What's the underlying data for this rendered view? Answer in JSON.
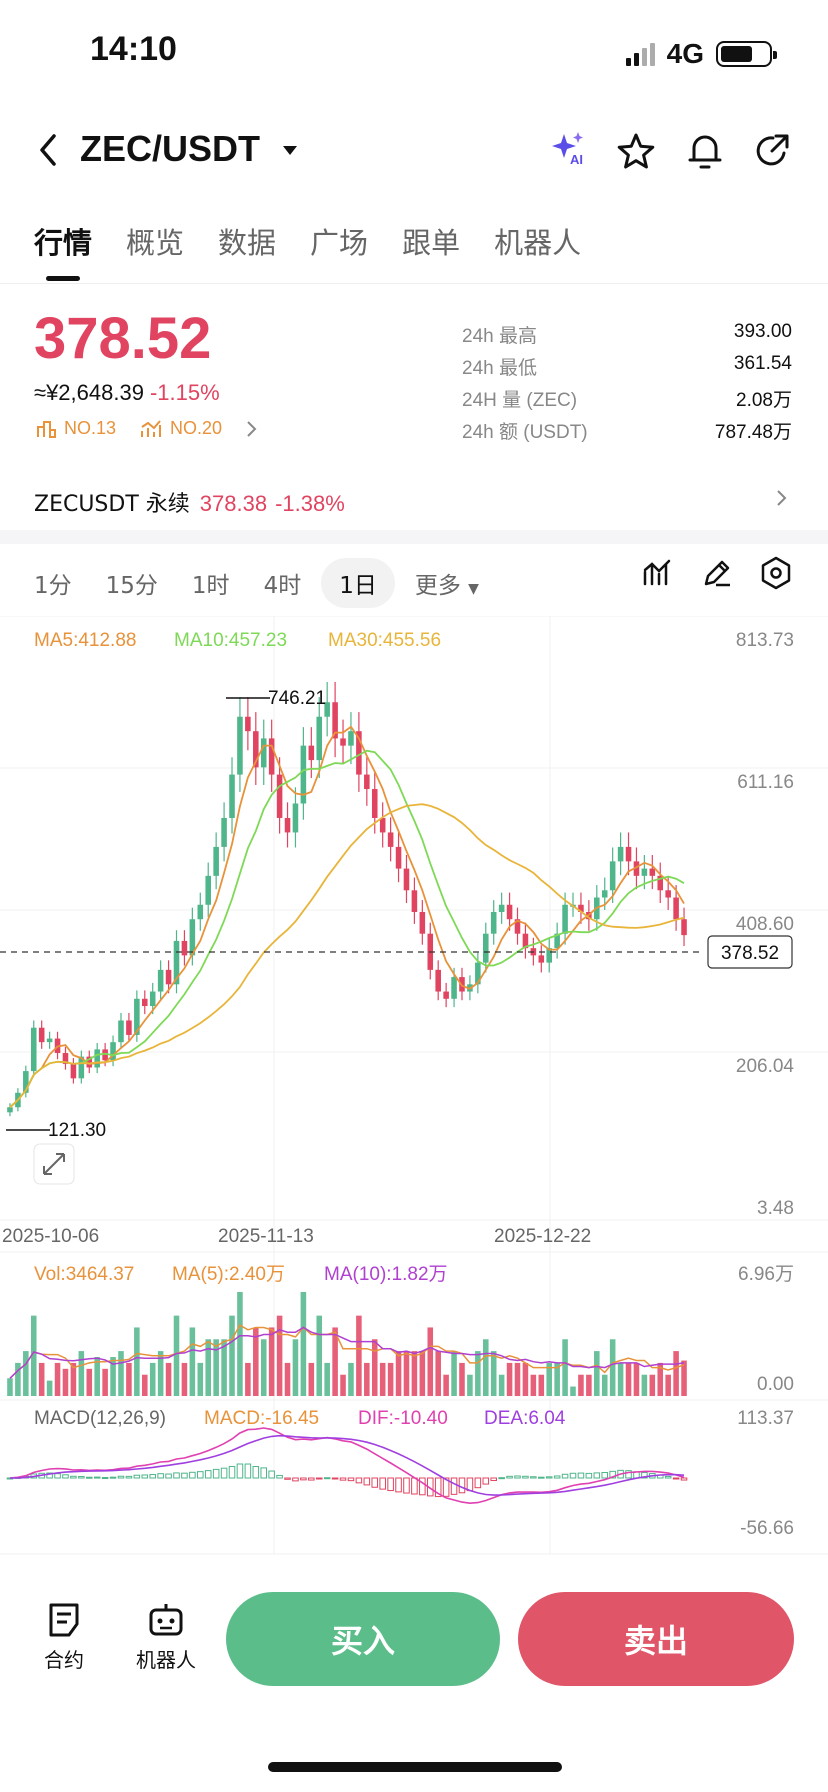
{
  "status": {
    "time": "14:10",
    "network": "4G"
  },
  "header": {
    "pair": "ZEC/USDT",
    "ai_badge": "AI"
  },
  "tabs": [
    "行情",
    "概览",
    "数据",
    "广场",
    "跟单",
    "机器人"
  ],
  "ticker": {
    "price": "378.52",
    "cny": "≈¥2,648.39",
    "change": "-1.15%",
    "rank1": "NO.13",
    "rank2": "NO.20",
    "stats": [
      {
        "label": "24h  最高",
        "value": "393.00"
      },
      {
        "label": "24h  最低",
        "value": "361.54"
      },
      {
        "label": "24H  量 (ZEC)",
        "value": "2.08万"
      },
      {
        "label": "24h  额 (USDT)",
        "value": "787.48万"
      }
    ]
  },
  "perpetual": {
    "label": "ZECUSDT 永续",
    "price": "378.38",
    "change": "-1.38%"
  },
  "timeframes": [
    "1分",
    "15分",
    "1时",
    "4时",
    "1日",
    "更多"
  ],
  "active_timeframe": "1日",
  "colors": {
    "up": "#4fb58a",
    "down": "#e04460",
    "ma5": "#e8923a",
    "ma10": "#7ed957",
    "ma30": "#e8b53a",
    "dif": "#e040b0",
    "dea": "#9f3fe0"
  },
  "chart_data": {
    "type": "candlestick",
    "legend": {
      "ma5": "MA5:412.88",
      "ma10": "MA10:457.23",
      "ma30": "MA30:455.56"
    },
    "yticks": [
      "813.73",
      "611.16",
      "408.60",
      "206.04",
      "3.48"
    ],
    "xticks": [
      "2025-10-06",
      "2025-11-13",
      "2025-12-22"
    ],
    "high_label": "746.21",
    "low_label": "121.30",
    "last_price_label": "378.52",
    "ylim": [
      3.48,
      813.73
    ],
    "closes": [
      140,
      160,
      190,
      250,
      230,
      235,
      215,
      200,
      180,
      210,
      195,
      220,
      205,
      230,
      260,
      240,
      290,
      280,
      300,
      330,
      310,
      370,
      350,
      400,
      420,
      460,
      500,
      540,
      600,
      680,
      660,
      610,
      650,
      600,
      540,
      520,
      560,
      640,
      620,
      680,
      700,
      650,
      640,
      660,
      600,
      580,
      540,
      520,
      500,
      470,
      440,
      410,
      380,
      330,
      300,
      290,
      320,
      300,
      310,
      340,
      380,
      410,
      420,
      400,
      380,
      360,
      350,
      340,
      360,
      380,
      420,
      420,
      410,
      400,
      430,
      440,
      480,
      500,
      480,
      460,
      470,
      460,
      440,
      430,
      400,
      378
    ],
    "volume": {
      "legend": {
        "vol": "Vol:3464.37",
        "ma5": "MA(5):2.40万",
        "ma10": "MA(10):1.82万"
      },
      "yticks": [
        "6.96万",
        "0.00"
      ]
    },
    "macd": {
      "legend": {
        "title": "MACD(12,26,9)",
        "macd": "MACD:-16.45",
        "dif": "DIF:-10.40",
        "dea": "DEA:6.04"
      },
      "yticks": [
        "113.37",
        "-56.66"
      ]
    }
  },
  "bottom": {
    "contract": "合约",
    "robot": "机器人",
    "buy": "买入",
    "sell": "卖出"
  }
}
